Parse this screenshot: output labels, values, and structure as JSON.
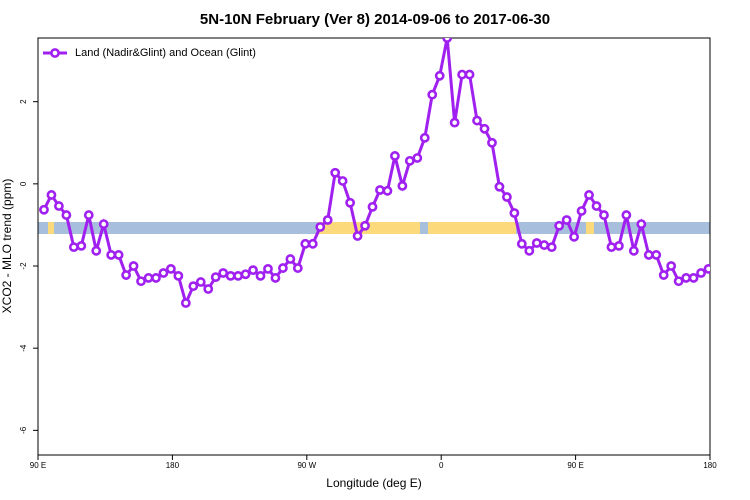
{
  "chart_data": {
    "type": "line",
    "title": "5N-10N February (Ver 8)   2014-09-06 to 2017-06-30",
    "x_label": "Longitude (deg E)",
    "y_label": "XCO2 - MLO trend (ppm)",
    "xlim": [
      90,
      540
    ],
    "ylim": [
      -6.6,
      3.55
    ],
    "xticks": [
      {
        "value": 90,
        "label": "90 E"
      },
      {
        "value": 180,
        "label": "180"
      },
      {
        "value": 270,
        "label": "90 W"
      },
      {
        "value": 360,
        "label": "0"
      },
      {
        "value": 450,
        "label": "90 E"
      },
      {
        "value": 540,
        "label": "180"
      }
    ],
    "yticks": [
      -6,
      -4,
      -2,
      0,
      2
    ],
    "legend": "top-left",
    "x": [
      94,
      99,
      104,
      109,
      114,
      119,
      124,
      129,
      134,
      139,
      144,
      149,
      154,
      159,
      164,
      169,
      174,
      179,
      184,
      189,
      194,
      199,
      204,
      209,
      214,
      219,
      224,
      229,
      234,
      239,
      244,
      249,
      254,
      259,
      264,
      269,
      274,
      279,
      284,
      289,
      294,
      299,
      304,
      309,
      314,
      319,
      324,
      329,
      334,
      339,
      344,
      349,
      354,
      359,
      364,
      369,
      374,
      379,
      384,
      389,
      394,
      399,
      404,
      409,
      414,
      419,
      424,
      429,
      434,
      439,
      444,
      449,
      454,
      459,
      464,
      469,
      474,
      479,
      484,
      489,
      494,
      499,
      504,
      509,
      514,
      519,
      524,
      529,
      534,
      539
    ],
    "series": [
      {
        "name": "Land (Nadir&Glint) and Ocean (Glint)",
        "color": "#a020f0",
        "values": [
          -0.63,
          -0.27,
          -0.54,
          -0.76,
          -1.54,
          -1.51,
          -0.76,
          -1.63,
          -0.98,
          -1.73,
          -1.73,
          -2.22,
          -2.0,
          -2.37,
          -2.29,
          -2.29,
          -2.17,
          -2.07,
          -2.24,
          -2.9,
          -2.49,
          -2.39,
          -2.56,
          -2.27,
          -2.17,
          -2.24,
          -2.24,
          -2.2,
          -2.1,
          -2.24,
          -2.07,
          -2.29,
          -2.05,
          -1.83,
          -2.05,
          -1.46,
          -1.46,
          -1.05,
          -0.88,
          0.27,
          0.07,
          -0.46,
          -1.27,
          -1.02,
          -0.56,
          -0.15,
          -0.17,
          0.68,
          -0.05,
          0.56,
          0.63,
          1.12,
          2.17,
          2.63,
          3.55,
          1.49,
          2.66,
          2.66,
          1.54,
          1.34,
          1.0,
          -0.07,
          -0.32,
          -0.71,
          -1.46,
          -1.63,
          -1.44,
          -1.49,
          -1.54,
          -1.02,
          -0.88,
          -1.29,
          -0.66,
          -0.27,
          -0.54,
          -0.76,
          -1.54,
          -1.51,
          -0.76,
          -1.63,
          -0.98,
          -1.73,
          -1.73,
          -2.22,
          -2.0,
          -2.37,
          -2.29,
          -2.29,
          -2.17,
          -2.07
        ]
      }
    ]
  }
}
